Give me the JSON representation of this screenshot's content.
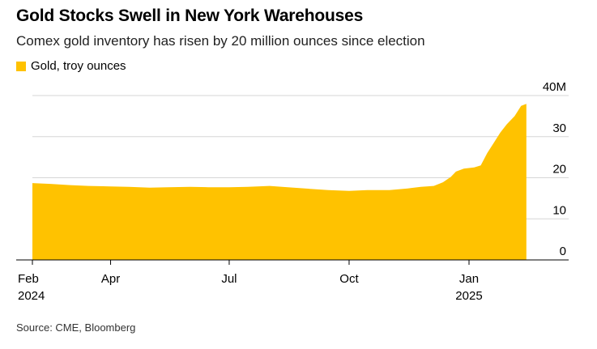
{
  "header": {
    "title": "Gold Stocks Swell in New York Warehouses",
    "subtitle": "Comex gold inventory has risen by 20 million ounces since election"
  },
  "legend": {
    "label": "Gold, troy ounces"
  },
  "footer": {
    "source": "Source: CME, Bloomberg"
  },
  "colors": {
    "area": "#FFC200",
    "axis": "#000000",
    "grid": "#D6D6D6"
  },
  "chart_data": {
    "type": "area",
    "title": "Gold Stocks Swell in New York Warehouses",
    "subtitle": "Comex gold inventory has risen by 20 million ounces since election",
    "unit": "million troy ounces",
    "ylim": [
      0,
      40
    ],
    "y_ticks": [
      {
        "value": 0,
        "label": "0"
      },
      {
        "value": 10,
        "label": "10"
      },
      {
        "value": 20,
        "label": "20"
      },
      {
        "value": 30,
        "label": "30"
      },
      {
        "value": 40,
        "label": "40M"
      }
    ],
    "x_ticks": [
      {
        "date": "2024-02-01",
        "line1": "Feb",
        "line2": "2024"
      },
      {
        "date": "2024-04-01",
        "line1": "Apr",
        "line2": ""
      },
      {
        "date": "2024-07-01",
        "line1": "Jul",
        "line2": ""
      },
      {
        "date": "2024-10-01",
        "line1": "Oct",
        "line2": ""
      },
      {
        "date": "2025-01-01",
        "line1": "Jan",
        "line2": "2025"
      }
    ],
    "xlim": [
      "2024-02-01",
      "2025-02-16"
    ],
    "grid": true,
    "legend_position": "top-left",
    "series": [
      {
        "name": "Gold, troy ounces",
        "points": [
          {
            "x": "2024-02-01",
            "y": 18.7
          },
          {
            "x": "2024-02-15",
            "y": 18.5
          },
          {
            "x": "2024-03-01",
            "y": 18.2
          },
          {
            "x": "2024-03-15",
            "y": 18.0
          },
          {
            "x": "2024-04-01",
            "y": 17.9
          },
          {
            "x": "2024-04-15",
            "y": 17.8
          },
          {
            "x": "2024-05-01",
            "y": 17.6
          },
          {
            "x": "2024-05-15",
            "y": 17.7
          },
          {
            "x": "2024-06-01",
            "y": 17.8
          },
          {
            "x": "2024-06-15",
            "y": 17.7
          },
          {
            "x": "2024-07-01",
            "y": 17.7
          },
          {
            "x": "2024-07-15",
            "y": 17.8
          },
          {
            "x": "2024-08-01",
            "y": 18.0
          },
          {
            "x": "2024-08-15",
            "y": 17.7
          },
          {
            "x": "2024-09-01",
            "y": 17.3
          },
          {
            "x": "2024-09-15",
            "y": 17.0
          },
          {
            "x": "2024-10-01",
            "y": 16.8
          },
          {
            "x": "2024-10-15",
            "y": 17.0
          },
          {
            "x": "2024-11-01",
            "y": 17.0
          },
          {
            "x": "2024-11-15",
            "y": 17.4
          },
          {
            "x": "2024-11-25",
            "y": 17.8
          },
          {
            "x": "2024-12-05",
            "y": 18.0
          },
          {
            "x": "2024-12-12",
            "y": 18.9
          },
          {
            "x": "2024-12-18",
            "y": 20.2
          },
          {
            "x": "2024-12-22",
            "y": 21.5
          },
          {
            "x": "2024-12-28",
            "y": 22.2
          },
          {
            "x": "2025-01-05",
            "y": 22.5
          },
          {
            "x": "2025-01-10",
            "y": 23.0
          },
          {
            "x": "2025-01-15",
            "y": 26.0
          },
          {
            "x": "2025-01-20",
            "y": 28.5
          },
          {
            "x": "2025-01-25",
            "y": 31.0
          },
          {
            "x": "2025-01-30",
            "y": 33.0
          },
          {
            "x": "2025-02-05",
            "y": 35.0
          },
          {
            "x": "2025-02-10",
            "y": 37.5
          },
          {
            "x": "2025-02-14",
            "y": 38.0
          }
        ]
      }
    ]
  }
}
